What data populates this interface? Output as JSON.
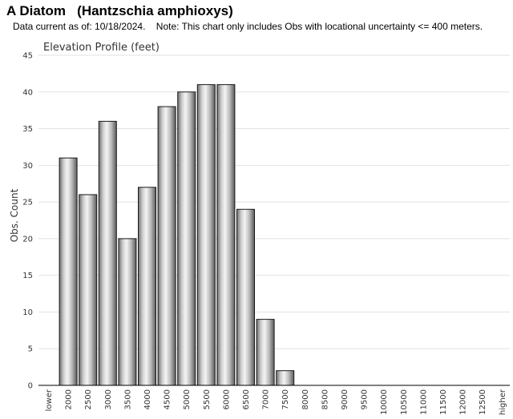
{
  "header": {
    "title": "A Diatom   (Hantzschia amphioxys)",
    "note": "Data current as of: 10/18/2024.    Note: This chart only includes Obs with locational uncertainty <= 400 meters."
  },
  "chart_data": {
    "type": "bar",
    "title": "Elevation Profile (feet)",
    "xlabel": "",
    "ylabel": "Obs. Count",
    "ylim": [
      0,
      45
    ],
    "yticks": [
      0,
      5,
      10,
      15,
      20,
      25,
      30,
      35,
      40,
      45
    ],
    "grid": true,
    "categories": [
      "lower",
      "2000",
      "2500",
      "3000",
      "3500",
      "4000",
      "4500",
      "5000",
      "5500",
      "6000",
      "6500",
      "7000",
      "7500",
      "8000",
      "8500",
      "9000",
      "9500",
      "10000",
      "10500",
      "11000",
      "11500",
      "12000",
      "12500",
      "higher"
    ],
    "values": [
      0,
      31,
      26,
      36,
      20,
      27,
      38,
      40,
      41,
      41,
      24,
      9,
      2,
      0,
      0,
      0,
      0,
      0,
      0,
      0,
      0,
      0,
      0,
      0
    ]
  }
}
